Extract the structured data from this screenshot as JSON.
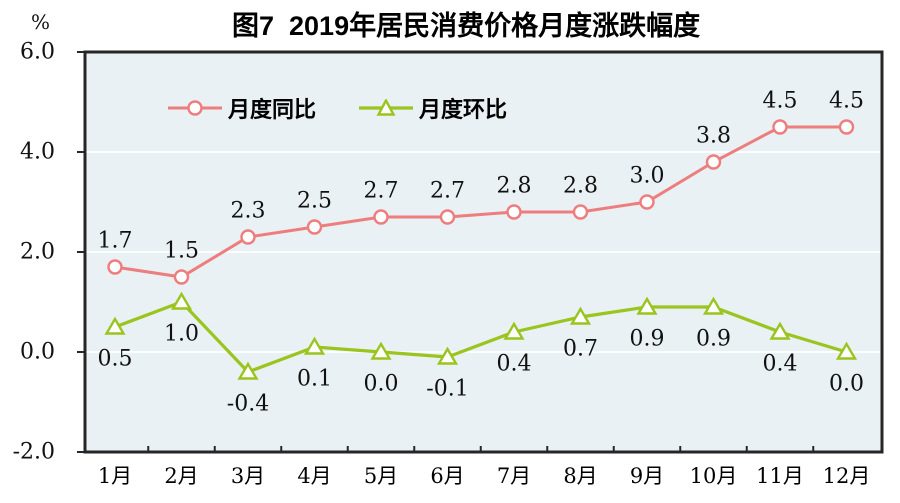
{
  "chart_data": {
    "type": "line",
    "title": "图7  2019年居民消费价格月度涨跌幅度",
    "ylabel": "%",
    "ylim": [
      -2.0,
      6.0
    ],
    "ytick_labels": [
      "6.0",
      "4.0",
      "2.0",
      "0.0",
      "-2.0"
    ],
    "categories": [
      "1月",
      "2月",
      "3月",
      "4月",
      "5月",
      "6月",
      "7月",
      "8月",
      "9月",
      "10月",
      "11月",
      "12月"
    ],
    "series": [
      {
        "name": "月度同比",
        "marker": "circle",
        "color": "#ee7d7d",
        "values": [
          1.7,
          1.5,
          2.3,
          2.5,
          2.7,
          2.7,
          2.8,
          2.8,
          3.0,
          3.8,
          4.5,
          4.5
        ],
        "label_position": "above"
      },
      {
        "name": "月度环比",
        "marker": "triangle",
        "color": "#9ac41e",
        "values": [
          0.5,
          1.0,
          -0.4,
          0.1,
          0.0,
          -0.1,
          0.4,
          0.7,
          0.9,
          0.9,
          0.4,
          0.0
        ],
        "label_position": "below"
      }
    ],
    "legend_position": "top-left",
    "grid": true,
    "plot_bg_color": "#e9f1f5",
    "gridline_color": "#fbfdfe",
    "axis_color": "#262626",
    "text_color": "#111111"
  }
}
